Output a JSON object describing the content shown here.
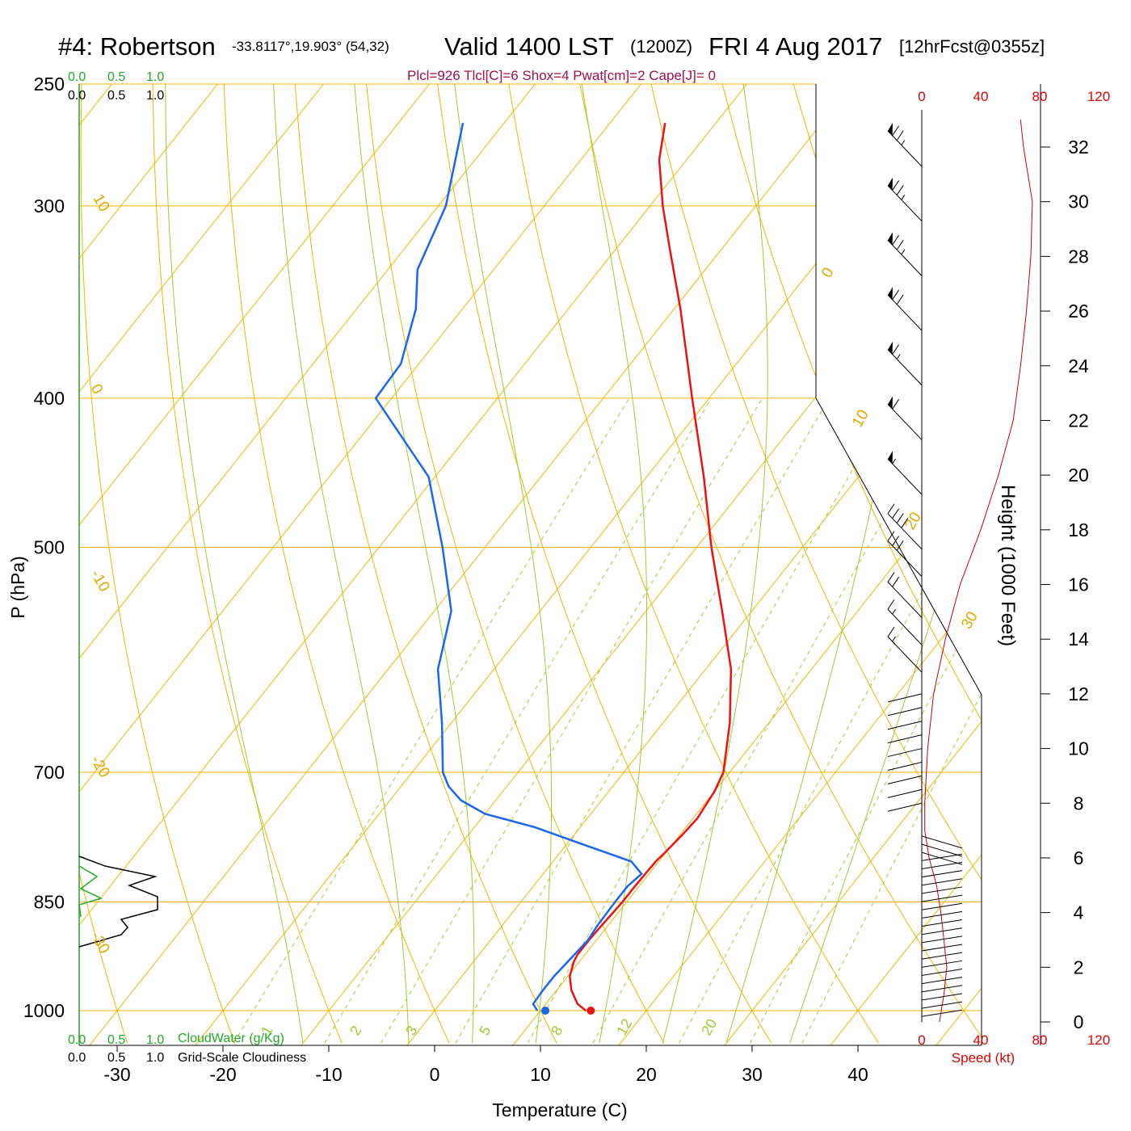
{
  "header": {
    "station": "#4: Robertson",
    "location": "-33.8117°,19.903° (54,32)",
    "valid": "Valid 1400 LST",
    "zulu": "(1200Z)",
    "date": "FRI 4 Aug 2017",
    "forecast": "[12hrFcst@0355z]",
    "indices": "Plcl=926 Tlcl[C]=6 Shox=4 Pwat[cm]=2 Cape[J]= 0"
  },
  "axes": {
    "x_label": "Temperature (C)",
    "y_label": "P (hPa)",
    "height_label": "Height (1000 Feet)",
    "speed_label": "Speed (kt)"
  },
  "legend": {
    "cloudwater_label": "CloudWater (g/Kg)",
    "cloudiness_label": "Grid-Scale Cloudiness",
    "scale_ticks": [
      "0.0",
      "0.5",
      "1.0"
    ]
  },
  "colors": {
    "temperature": "#ee1111",
    "dewpoint": "#1a66ee",
    "isotherm": "#f0b400",
    "mixing_ratio": "#9acd32",
    "wind_speed": "#cc0000",
    "cloudwater": "#22aa22"
  },
  "chart_data": {
    "type": "line",
    "title": "Skew-T sounding #4: Robertson",
    "x_ticks": [
      "-30",
      "-20",
      "-10",
      "0",
      "10",
      "20",
      "30",
      "40"
    ],
    "x_values": [
      -30,
      -20,
      -10,
      0,
      10,
      20,
      30,
      40
    ],
    "p_levels": [
      250,
      300,
      400,
      500,
      700,
      850,
      1000
    ],
    "p_labels": [
      "250",
      "300",
      "400",
      "500",
      "700",
      "850",
      "1000"
    ],
    "height_ticks": [
      "0",
      "2",
      "4",
      "6",
      "8",
      "10",
      "12",
      "14",
      "16",
      "18",
      "20",
      "22",
      "24",
      "26",
      "28",
      "30",
      "32"
    ],
    "height_values": [
      0,
      2,
      4,
      6,
      8,
      10,
      12,
      14,
      16,
      18,
      20,
      22,
      24,
      26,
      28,
      30,
      32
    ],
    "speed_ticks": [
      "0",
      "40",
      "80",
      "120"
    ],
    "isotherm_labels": [
      "10",
      "0",
      "-10",
      "-20",
      "-30",
      "0",
      "10",
      "20",
      "30"
    ],
    "mixing_ratio_labels": [
      "1",
      "2",
      "3",
      "5",
      "8",
      "12",
      "20"
    ],
    "series": [
      {
        "name": "Temperature",
        "unit": "C",
        "points": [
          [
            1000,
            14.3
          ],
          [
            990,
            13.0
          ],
          [
            970,
            11.4
          ],
          [
            950,
            10.2
          ],
          [
            930,
            9.5
          ],
          [
            920,
            9.3
          ],
          [
            900,
            9.3
          ],
          [
            880,
            9.4
          ],
          [
            850,
            9.6
          ],
          [
            830,
            9.6
          ],
          [
            800,
            9.7
          ],
          [
            790,
            9.9
          ],
          [
            770,
            10.2
          ],
          [
            750,
            10.4
          ],
          [
            720,
            10.0
          ],
          [
            700,
            9.4
          ],
          [
            650,
            6.3
          ],
          [
            600,
            2.4
          ],
          [
            550,
            -2.8
          ],
          [
            500,
            -8.6
          ],
          [
            450,
            -14.6
          ],
          [
            400,
            -21.6
          ],
          [
            350,
            -29.4
          ],
          [
            320,
            -34.9
          ],
          [
            300,
            -38.8
          ],
          [
            280,
            -42.6
          ],
          [
            265,
            -44.8
          ]
        ]
      },
      {
        "name": "Dewpoint",
        "unit": "C",
        "points": [
          [
            1000,
            9.7
          ],
          [
            990,
            8.8
          ],
          [
            970,
            8.7
          ],
          [
            950,
            8.7
          ],
          [
            920,
            9.0
          ],
          [
            900,
            9.2
          ],
          [
            880,
            9.0
          ],
          [
            850,
            8.9
          ],
          [
            830,
            8.9
          ],
          [
            815,
            9.3
          ],
          [
            800,
            7.4
          ],
          [
            780,
            1.6
          ],
          [
            760,
            -4.3
          ],
          [
            745,
            -10.0
          ],
          [
            730,
            -13.3
          ],
          [
            715,
            -15.5
          ],
          [
            700,
            -17.1
          ],
          [
            650,
            -20.9
          ],
          [
            600,
            -25.3
          ],
          [
            550,
            -28.4
          ],
          [
            500,
            -34.0
          ],
          [
            450,
            -40.6
          ],
          [
            400,
            -51.5
          ],
          [
            380,
            -51.7
          ],
          [
            350,
            -54.4
          ],
          [
            330,
            -57.2
          ],
          [
            300,
            -59.3
          ],
          [
            265,
            -63.9
          ]
        ]
      }
    ],
    "wind_speed_profile": {
      "unit": "kt",
      "points": [
        [
          0,
          12
        ],
        [
          1,
          15
        ],
        [
          2,
          17
        ],
        [
          3,
          15
        ],
        [
          4,
          13
        ],
        [
          5,
          10
        ],
        [
          6,
          5
        ],
        [
          7,
          2
        ],
        [
          8,
          2
        ],
        [
          9,
          3
        ],
        [
          10,
          4
        ],
        [
          11,
          6
        ],
        [
          12,
          8
        ],
        [
          14,
          16
        ],
        [
          16,
          26
        ],
        [
          18,
          40
        ],
        [
          20,
          52
        ],
        [
          22,
          62
        ],
        [
          24,
          67
        ],
        [
          26,
          71
        ],
        [
          28,
          74
        ],
        [
          30,
          75
        ],
        [
          32,
          69
        ],
        [
          33,
          67
        ]
      ]
    },
    "wind_barbs": {
      "unit": "kt",
      "upper": [
        {
          "height": 32,
          "speed": 75
        },
        {
          "height": 30,
          "speed": 75
        },
        {
          "height": 28,
          "speed": 75
        },
        {
          "height": 26,
          "speed": 70
        },
        {
          "height": 24,
          "speed": 65
        },
        {
          "height": 22,
          "speed": 60
        },
        {
          "height": 20,
          "speed": 55
        },
        {
          "height": 18,
          "speed": 40
        },
        {
          "height": 17,
          "speed": 30
        },
        {
          "height": 15.5,
          "speed": 20
        },
        {
          "height": 14.5,
          "speed": 15
        },
        {
          "height": 13.5,
          "speed": 15
        }
      ],
      "lower_fan_speed": [
        12,
        15,
        18,
        15,
        12,
        8,
        5
      ]
    }
  }
}
